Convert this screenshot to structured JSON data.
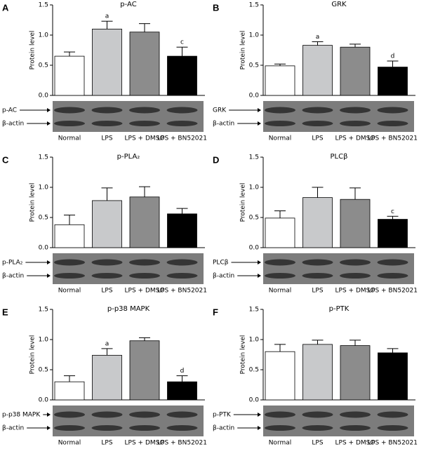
{
  "chart_data": [
    {
      "type": "bar",
      "panel": "A",
      "title": "p-AC",
      "ylabel": "Protein level",
      "categories": [
        "Normal",
        "LPS",
        "LPS + DMSO",
        "LPS + BN52021"
      ],
      "values": [
        0.65,
        1.1,
        1.05,
        0.65
      ],
      "errors": [
        0.07,
        0.13,
        0.14,
        0.15
      ],
      "annotations": [
        null,
        "a",
        null,
        "c"
      ],
      "colors": [
        "#ffffff",
        "#c8c9cb",
        "#8c8c8c",
        "#000000"
      ],
      "ylim": [
        0,
        1.5
      ],
      "yticks": [
        {
          "value": 0,
          "label": "0.0"
        },
        0.5,
        {
          "value": 1,
          "label": "1.0"
        },
        1.5
      ],
      "blot_labels": [
        "p-AC",
        "β-actin"
      ]
    },
    {
      "type": "bar",
      "panel": "B",
      "title": "GRK",
      "ylabel": "Protein level",
      "categories": [
        "Normal",
        "LPS",
        "LPS + DMSO",
        "LPS + BN52021"
      ],
      "values": [
        0.49,
        0.83,
        0.8,
        0.47
      ],
      "errors": [
        0.03,
        0.06,
        0.05,
        0.1
      ],
      "annotations": [
        null,
        "a",
        null,
        "d"
      ],
      "colors": [
        "#ffffff",
        "#c8c9cb",
        "#8c8c8c",
        "#000000"
      ],
      "ylim": [
        0,
        1.5
      ],
      "yticks": [
        {
          "value": 0,
          "label": "0.0"
        },
        0.5,
        {
          "value": 1,
          "label": "1.0"
        },
        1.5
      ],
      "blot_labels": [
        "GRK",
        "β-actin"
      ]
    },
    {
      "type": "bar",
      "panel": "C",
      "title": "p-PLA₂",
      "ylabel": "Protein level",
      "categories": [
        "Normal",
        "LPS",
        "LPS + DMSO",
        "LPS + BN52021"
      ],
      "values": [
        0.38,
        0.78,
        0.84,
        0.56
      ],
      "errors": [
        0.16,
        0.21,
        0.17,
        0.09
      ],
      "annotations": [
        null,
        null,
        null,
        null
      ],
      "colors": [
        "#ffffff",
        "#c8c9cb",
        "#8c8c8c",
        "#000000"
      ],
      "ylim": [
        0,
        1.5
      ],
      "yticks": [
        {
          "value": 0,
          "label": "0.0"
        },
        0.5,
        {
          "value": 1,
          "label": "1.0"
        },
        1.5
      ],
      "blot_labels": [
        "p-PLA₂",
        "β-actin"
      ]
    },
    {
      "type": "bar",
      "panel": "D",
      "title": "PLCβ",
      "ylabel": "Protein level",
      "categories": [
        "Normal",
        "LPS",
        "LPS + DMSO",
        "LPS + BN52021"
      ],
      "values": [
        0.49,
        0.83,
        0.8,
        0.47
      ],
      "errors": [
        0.12,
        0.17,
        0.19,
        0.05
      ],
      "annotations": [
        null,
        null,
        null,
        "c"
      ],
      "colors": [
        "#ffffff",
        "#c8c9cb",
        "#8c8c8c",
        "#000000"
      ],
      "ylim": [
        0,
        1.5
      ],
      "yticks": [
        {
          "value": 0,
          "label": "0.0"
        },
        0.5,
        {
          "value": 1,
          "label": "1.0"
        },
        1.5
      ],
      "blot_labels": [
        "PLCβ",
        "β-actin"
      ]
    },
    {
      "type": "bar",
      "panel": "E",
      "title": "p-p38 MAPK",
      "ylabel": "Protein level",
      "categories": [
        "Normal",
        "LPS",
        "LPS + DMSO",
        "LPS + BN52021"
      ],
      "values": [
        0.3,
        0.74,
        0.98,
        0.3
      ],
      "errors": [
        0.1,
        0.11,
        0.05,
        0.1
      ],
      "annotations": [
        null,
        "a",
        null,
        "d"
      ],
      "colors": [
        "#ffffff",
        "#c8c9cb",
        "#8c8c8c",
        "#000000"
      ],
      "ylim": [
        0,
        1.5
      ],
      "yticks": [
        {
          "value": 0,
          "label": "0.0"
        },
        0.5,
        {
          "value": 1,
          "label": "1.0"
        },
        1.5
      ],
      "blot_labels": [
        "p-p38 MAPK",
        "β-actin"
      ]
    },
    {
      "type": "bar",
      "panel": "F",
      "title": "p-PTK",
      "ylabel": "Protein level",
      "categories": [
        "Normal",
        "LPS",
        "LPS + DMSO",
        "LPS + BN52021"
      ],
      "values": [
        0.8,
        0.92,
        0.9,
        0.78
      ],
      "errors": [
        0.12,
        0.07,
        0.09,
        0.07
      ],
      "annotations": [
        null,
        null,
        null,
        null
      ],
      "colors": [
        "#ffffff",
        "#c8c9cb",
        "#8c8c8c",
        "#000000"
      ],
      "ylim": [
        0,
        1.5
      ],
      "yticks": [
        {
          "value": 0,
          "label": "0.0"
        },
        0.5,
        {
          "value": 1,
          "label": "1.0"
        },
        1.5
      ],
      "blot_labels": [
        "p-PTK",
        "β-actin"
      ]
    }
  ]
}
